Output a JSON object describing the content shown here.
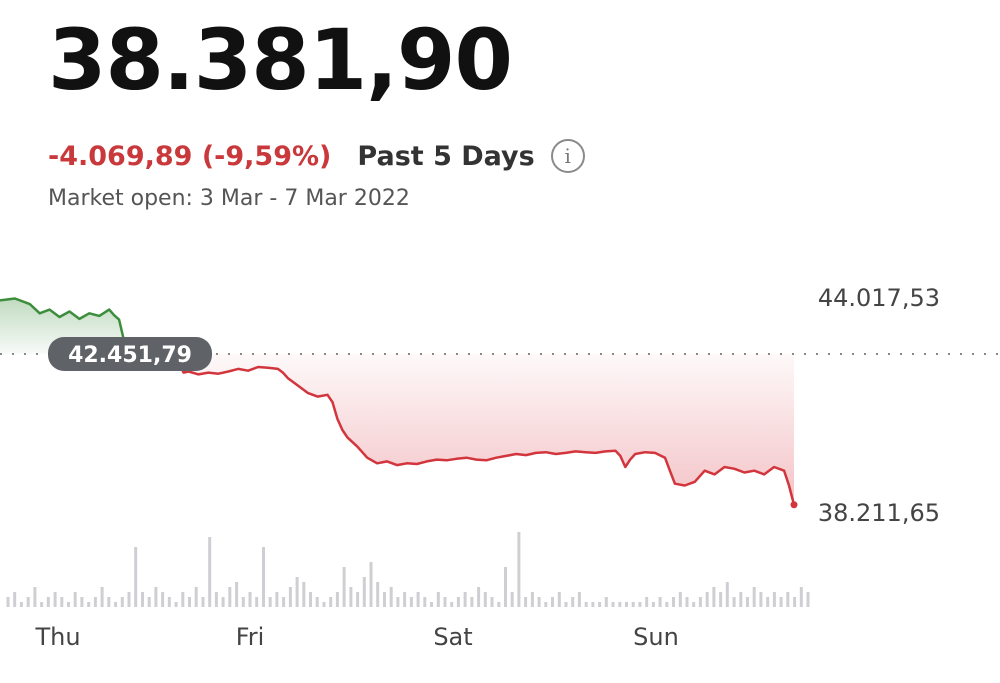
{
  "header": {
    "price": "38.381,90",
    "change": "-4.069,89 (-9,59%)",
    "period": "Past 5 Days",
    "info_icon": "info-circle-icon",
    "market_status": "Market open: 3 Mar - 7 Mar 2022"
  },
  "colors": {
    "up": "#3c8d3c",
    "down": "#d2353c",
    "up_fill": "#3c8d3c",
    "down_fill": "#e0606a",
    "volume": "#cfcfd3",
    "badge": "#5f6368"
  },
  "chart_data": {
    "type": "area",
    "reference_value": 42451.79,
    "reference_label": "42.451,79",
    "y_labels": [
      {
        "value": 44017.53,
        "text": "44.017,53"
      },
      {
        "value": 38211.65,
        "text": "38.211,65"
      }
    ],
    "x_labels": [
      "Thu",
      "Fri",
      "Sat",
      "Sun"
    ],
    "grid": false,
    "price": [
      [
        0,
        43900
      ],
      [
        3,
        43950
      ],
      [
        6,
        43800
      ],
      [
        8,
        43550
      ],
      [
        10,
        43650
      ],
      [
        12,
        43450
      ],
      [
        14,
        43600
      ],
      [
        16,
        43400
      ],
      [
        18,
        43550
      ],
      [
        20,
        43480
      ],
      [
        22,
        43650
      ],
      [
        23,
        43500
      ],
      [
        24,
        43380
      ],
      [
        25,
        42800
      ],
      [
        27,
        42500
      ],
      [
        29,
        42420
      ],
      [
        31,
        42600
      ],
      [
        33,
        42500
      ],
      [
        35,
        42380
      ],
      [
        36,
        42200
      ],
      [
        37,
        41950
      ],
      [
        38,
        41980
      ],
      [
        40,
        41900
      ],
      [
        42,
        41950
      ],
      [
        44,
        41920
      ],
      [
        46,
        41980
      ],
      [
        48,
        42050
      ],
      [
        50,
        42000
      ],
      [
        52,
        42100
      ],
      [
        54,
        42080
      ],
      [
        56,
        42050
      ],
      [
        57,
        41950
      ],
      [
        58,
        41800
      ],
      [
        60,
        41600
      ],
      [
        62,
        41400
      ],
      [
        64,
        41300
      ],
      [
        66,
        41350
      ],
      [
        67,
        41150
      ],
      [
        68,
        40700
      ],
      [
        69,
        40400
      ],
      [
        70,
        40200
      ],
      [
        72,
        39950
      ],
      [
        74,
        39650
      ],
      [
        76,
        39500
      ],
      [
        78,
        39550
      ],
      [
        80,
        39450
      ],
      [
        82,
        39500
      ],
      [
        84,
        39480
      ],
      [
        86,
        39550
      ],
      [
        88,
        39600
      ],
      [
        90,
        39580
      ],
      [
        92,
        39620
      ],
      [
        94,
        39650
      ],
      [
        96,
        39600
      ],
      [
        98,
        39580
      ],
      [
        100,
        39650
      ],
      [
        102,
        39700
      ],
      [
        104,
        39750
      ],
      [
        106,
        39720
      ],
      [
        108,
        39780
      ],
      [
        110,
        39800
      ],
      [
        112,
        39750
      ],
      [
        114,
        39780
      ],
      [
        116,
        39820
      ],
      [
        118,
        39800
      ],
      [
        120,
        39780
      ],
      [
        122,
        39820
      ],
      [
        124,
        39840
      ],
      [
        125,
        39700
      ],
      [
        126,
        39400
      ],
      [
        127,
        39600
      ],
      [
        128,
        39750
      ],
      [
        130,
        39800
      ],
      [
        132,
        39780
      ],
      [
        134,
        39650
      ],
      [
        135,
        39300
      ],
      [
        136,
        38950
      ],
      [
        138,
        38900
      ],
      [
        140,
        39000
      ],
      [
        142,
        39300
      ],
      [
        144,
        39200
      ],
      [
        146,
        39400
      ],
      [
        148,
        39350
      ],
      [
        150,
        39250
      ],
      [
        152,
        39300
      ],
      [
        154,
        39200
      ],
      [
        156,
        39400
      ],
      [
        158,
        39300
      ],
      [
        159,
        38900
      ],
      [
        160,
        38380
      ]
    ],
    "volume": [
      2,
      3,
      1,
      2,
      4,
      1,
      2,
      3,
      2,
      1,
      3,
      2,
      1,
      2,
      4,
      2,
      1,
      2,
      3,
      12,
      3,
      2,
      4,
      3,
      2,
      1,
      3,
      2,
      4,
      2,
      14,
      3,
      2,
      4,
      5,
      2,
      3,
      2,
      12,
      2,
      3,
      2,
      4,
      6,
      5,
      3,
      2,
      1,
      2,
      3,
      8,
      4,
      3,
      6,
      9,
      5,
      3,
      4,
      2,
      3,
      2,
      3,
      2,
      1,
      3,
      2,
      1,
      2,
      3,
      2,
      4,
      3,
      2,
      1,
      8,
      3,
      15,
      2,
      3,
      2,
      1,
      2,
      3,
      1,
      2,
      3,
      1,
      1,
      1,
      2,
      1,
      1,
      1,
      1,
      1,
      2,
      1,
      2,
      1,
      2,
      3,
      2,
      1,
      2,
      3,
      4,
      3,
      5,
      2,
      3,
      2,
      4,
      3,
      2,
      3,
      2,
      3,
      2,
      4,
      3
    ]
  }
}
